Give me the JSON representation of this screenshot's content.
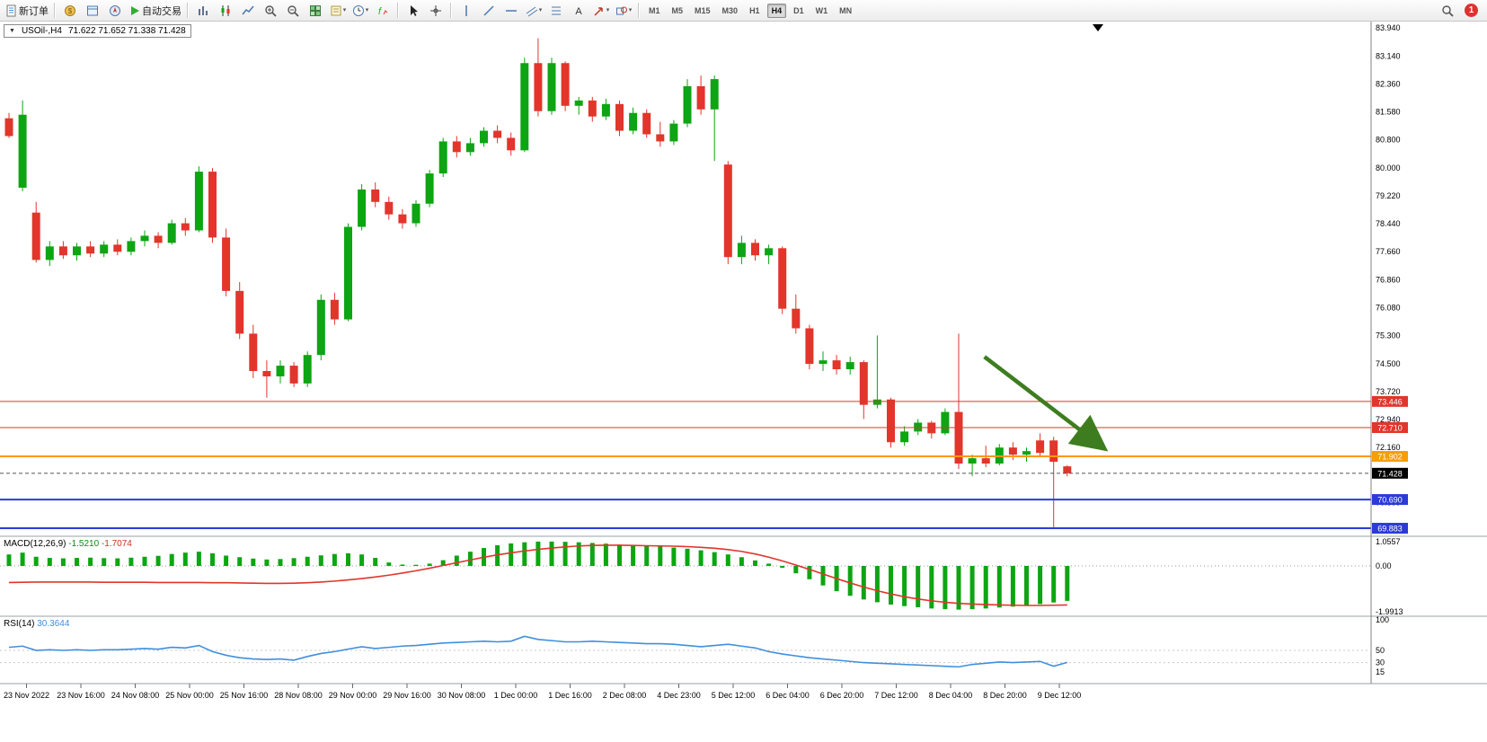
{
  "toolbar": {
    "new_order_label": "新订单",
    "auto_trading_label": "自动交易",
    "notification_count": "1",
    "timeframes": [
      "M1",
      "M5",
      "M15",
      "M30",
      "H1",
      "H4",
      "D1",
      "W1",
      "MN"
    ],
    "active_timeframe": "H4",
    "icon_groups": [
      {
        "id": "grp-windows",
        "icons": [
          "market-watch-icon",
          "data-window-icon",
          "navigator-icon"
        ]
      },
      {
        "id": "grp-chart",
        "icons": [
          "bar-chart-icon",
          "candlestick-chart-icon",
          "line-chart-icon",
          "zoom-in-icon",
          "zoom-out-icon",
          "tile-windows-icon",
          "templates-icon",
          "period-icon",
          "indicators-icon"
        ]
      },
      {
        "id": "grp-cursor",
        "icons": [
          "cursor-icon",
          "crosshair-icon"
        ]
      },
      {
        "id": "grp-draw",
        "icons": [
          "vertical-line-icon",
          "trendline-icon",
          "horizontal-line-icon",
          "equidistant-channel-icon",
          "fibonacci-icon",
          "text-label-icon",
          "arrow-tool-icon",
          "shapes-icon"
        ]
      }
    ]
  },
  "colors": {
    "bull": "#0da513",
    "bear": "#e2352b",
    "macd_histogram": "#0da513",
    "macd_signal": "#e2352b",
    "rsi_line": "#3f8fde",
    "arrow": "#3e7d1f"
  },
  "chart_data": {
    "type": "candlestick",
    "symbol": "USOil-,H4",
    "ohlc_text": "71.622 71.652 71.338 71.428",
    "open": "71.622",
    "high": "71.652",
    "low": "71.338",
    "close": "71.428",
    "price_axis": {
      "labels": [
        "83.940",
        "83.140",
        "82.360",
        "81.580",
        "80.800",
        "80.000",
        "79.220",
        "78.440",
        "77.660",
        "76.860",
        "76.080",
        "75.300",
        "74.500",
        "73.720",
        "72.940",
        "72.160",
        "71.380",
        "70.600",
        "69.820"
      ],
      "values": [
        83.94,
        83.14,
        82.36,
        81.58,
        80.8,
        80.0,
        79.22,
        78.44,
        77.66,
        76.86,
        76.08,
        75.3,
        74.5,
        73.72,
        72.94,
        72.16,
        71.38,
        70.6,
        69.82
      ]
    },
    "candles": [
      [
        81.4,
        81.55,
        80.85,
        80.9
      ],
      [
        79.45,
        81.9,
        79.35,
        81.5
      ],
      [
        78.75,
        79.05,
        77.35,
        77.42
      ],
      [
        77.42,
        77.95,
        77.25,
        77.8
      ],
      [
        77.8,
        77.95,
        77.45,
        77.55
      ],
      [
        77.55,
        77.9,
        77.4,
        77.8
      ],
      [
        77.8,
        77.95,
        77.5,
        77.6
      ],
      [
        77.6,
        77.95,
        77.5,
        77.85
      ],
      [
        77.85,
        78.0,
        77.55,
        77.65
      ],
      [
        77.65,
        78.05,
        77.55,
        77.95
      ],
      [
        77.95,
        78.25,
        77.8,
        78.1
      ],
      [
        78.1,
        78.2,
        77.75,
        77.9
      ],
      [
        77.9,
        78.55,
        77.85,
        78.45
      ],
      [
        78.45,
        78.6,
        78.1,
        78.25
      ],
      [
        78.25,
        80.05,
        78.2,
        79.9
      ],
      [
        79.9,
        80.0,
        77.9,
        78.05
      ],
      [
        78.05,
        78.3,
        76.4,
        76.55
      ],
      [
        76.55,
        76.8,
        75.2,
        75.35
      ],
      [
        75.35,
        75.6,
        74.1,
        74.3
      ],
      [
        74.3,
        74.6,
        73.55,
        74.15
      ],
      [
        74.15,
        74.6,
        73.95,
        74.45
      ],
      [
        74.45,
        74.55,
        73.85,
        73.95
      ],
      [
        73.95,
        74.85,
        73.85,
        74.75
      ],
      [
        74.75,
        76.45,
        74.6,
        76.3
      ],
      [
        76.3,
        76.5,
        75.6,
        75.75
      ],
      [
        75.75,
        78.45,
        75.7,
        78.35
      ],
      [
        78.35,
        79.55,
        78.25,
        79.4
      ],
      [
        79.4,
        79.6,
        78.9,
        79.05
      ],
      [
        79.05,
        79.2,
        78.55,
        78.7
      ],
      [
        78.7,
        78.85,
        78.3,
        78.45
      ],
      [
        78.45,
        79.1,
        78.35,
        79.0
      ],
      [
        79.0,
        79.95,
        78.9,
        79.85
      ],
      [
        79.85,
        80.85,
        79.75,
        80.75
      ],
      [
        80.75,
        80.9,
        80.3,
        80.45
      ],
      [
        80.45,
        80.85,
        80.35,
        80.7
      ],
      [
        80.7,
        81.15,
        80.6,
        81.05
      ],
      [
        81.05,
        81.2,
        80.7,
        80.85
      ],
      [
        80.85,
        81.0,
        80.35,
        80.5
      ],
      [
        80.5,
        83.1,
        80.45,
        82.95
      ],
      [
        82.95,
        83.65,
        81.45,
        81.6
      ],
      [
        81.6,
        83.1,
        81.5,
        82.95
      ],
      [
        82.95,
        83.0,
        81.6,
        81.75
      ],
      [
        81.75,
        82.0,
        81.5,
        81.9
      ],
      [
        81.9,
        82.0,
        81.3,
        81.45
      ],
      [
        81.45,
        81.95,
        81.35,
        81.8
      ],
      [
        81.8,
        81.9,
        80.9,
        81.05
      ],
      [
        81.05,
        81.7,
        80.95,
        81.55
      ],
      [
        81.55,
        81.65,
        80.85,
        80.95
      ],
      [
        80.95,
        81.3,
        80.6,
        80.75
      ],
      [
        80.75,
        81.35,
        80.65,
        81.25
      ],
      [
        81.25,
        82.5,
        81.15,
        82.3
      ],
      [
        82.3,
        82.6,
        81.5,
        81.65
      ],
      [
        81.65,
        82.6,
        80.2,
        82.5
      ],
      [
        80.1,
        80.2,
        77.3,
        77.5
      ],
      [
        77.5,
        78.1,
        77.3,
        77.9
      ],
      [
        77.9,
        78.0,
        77.4,
        77.55
      ],
      [
        77.55,
        77.85,
        77.3,
        77.75
      ],
      [
        77.75,
        77.8,
        75.9,
        76.05
      ],
      [
        76.05,
        76.45,
        75.35,
        75.5
      ],
      [
        75.5,
        75.6,
        74.35,
        74.5
      ],
      [
        74.5,
        74.85,
        74.3,
        74.6
      ],
      [
        74.6,
        74.75,
        74.2,
        74.35
      ],
      [
        74.35,
        74.7,
        74.2,
        74.55
      ],
      [
        74.55,
        74.6,
        72.95,
        73.35
      ],
      [
        73.35,
        75.3,
        73.25,
        73.5
      ],
      [
        73.5,
        73.55,
        72.15,
        72.3
      ],
      [
        72.3,
        72.75,
        72.2,
        72.6
      ],
      [
        72.6,
        72.95,
        72.5,
        72.85
      ],
      [
        72.85,
        72.9,
        72.4,
        72.55
      ],
      [
        72.55,
        73.25,
        72.5,
        73.15
      ],
      [
        73.15,
        75.35,
        71.55,
        71.7
      ],
      [
        71.7,
        71.95,
        71.35,
        71.85
      ],
      [
        71.85,
        72.2,
        71.6,
        71.7
      ],
      [
        71.7,
        72.25,
        71.65,
        72.15
      ],
      [
        72.15,
        72.3,
        71.8,
        71.95
      ],
      [
        71.95,
        72.15,
        71.75,
        72.05
      ],
      [
        72.35,
        72.55,
        71.9,
        72.0
      ],
      [
        72.35,
        72.45,
        69.9,
        71.75
      ],
      [
        71.622,
        71.652,
        71.338,
        71.428
      ]
    ],
    "hlines": [
      {
        "value": "73.446",
        "price": 73.446,
        "color": "#e2352b",
        "width": 1,
        "badge": "#e2352b"
      },
      {
        "value": "72.710",
        "price": 72.71,
        "color": "#e2352b",
        "width": 1,
        "badge": "#e2352b"
      },
      {
        "value": "71.902",
        "price": 71.902,
        "color": "#ff9800",
        "width": 2,
        "badge": "#f59f00"
      },
      {
        "value": "70.690",
        "price": 70.69,
        "color": "#2b3bd6",
        "width": 2,
        "badge": "#2b3bd6"
      },
      {
        "value": "69.883",
        "price": 69.883,
        "color": "#2b3bd6",
        "width": 2,
        "badge": "#2b3bd6"
      }
    ],
    "current_price": {
      "value": "71.428",
      "price": 71.428
    },
    "arrow": {
      "from": {
        "bar": 71.9,
        "price": 74.7
      },
      "to": {
        "bar": 80.3,
        "price": 72.25
      }
    },
    "macd": {
      "name": "MACD(12,26,9)",
      "value": "-1.5210",
      "signal_value": "-1.7074",
      "axis_labels": [
        "1.0557",
        "0.00",
        "-1.9913"
      ],
      "axis_values": [
        1.0557,
        0,
        -1.9913
      ],
      "histogram": [
        0.5,
        0.58,
        0.4,
        0.35,
        0.33,
        0.35,
        0.36,
        0.34,
        0.33,
        0.36,
        0.4,
        0.44,
        0.52,
        0.58,
        0.62,
        0.55,
        0.45,
        0.38,
        0.32,
        0.28,
        0.3,
        0.34,
        0.4,
        0.46,
        0.52,
        0.55,
        0.5,
        0.35,
        0.15,
        0.06,
        0.05,
        0.1,
        0.25,
        0.45,
        0.62,
        0.78,
        0.9,
        0.98,
        1.03,
        1.06,
        1.06,
        1.05,
        1.03,
        1.0,
        0.97,
        0.93,
        0.9,
        0.87,
        0.84,
        0.8,
        0.75,
        0.68,
        0.6,
        0.5,
        0.38,
        0.24,
        0.1,
        -0.08,
        -0.32,
        -0.58,
        -0.85,
        -1.1,
        -1.3,
        -1.46,
        -1.58,
        -1.68,
        -1.75,
        -1.8,
        -1.85,
        -1.88,
        -1.9,
        -1.88,
        -1.85,
        -1.81,
        -1.77,
        -1.72,
        -1.66,
        -1.59,
        -1.52
      ],
      "signal": [
        -0.72,
        -0.71,
        -0.7,
        -0.7,
        -0.7,
        -0.7,
        -0.7,
        -0.71,
        -0.71,
        -0.71,
        -0.71,
        -0.72,
        -0.72,
        -0.72,
        -0.72,
        -0.73,
        -0.73,
        -0.74,
        -0.75,
        -0.76,
        -0.76,
        -0.75,
        -0.73,
        -0.7,
        -0.66,
        -0.61,
        -0.55,
        -0.48,
        -0.4,
        -0.31,
        -0.21,
        -0.1,
        0.02,
        0.14,
        0.26,
        0.38,
        0.48,
        0.57,
        0.65,
        0.72,
        0.78,
        0.83,
        0.87,
        0.89,
        0.9,
        0.9,
        0.89,
        0.88,
        0.87,
        0.86,
        0.84,
        0.81,
        0.77,
        0.71,
        0.63,
        0.52,
        0.38,
        0.22,
        0.04,
        -0.15,
        -0.35,
        -0.55,
        -0.74,
        -0.92,
        -1.08,
        -1.22,
        -1.34,
        -1.44,
        -1.52,
        -1.58,
        -1.63,
        -1.66,
        -1.68,
        -1.7,
        -1.71,
        -1.72,
        -1.72,
        -1.71,
        -1.7
      ]
    },
    "rsi": {
      "name": "RSI(14)",
      "value": "30.3644",
      "axis_labels": [
        "100",
        "50",
        "30",
        "15"
      ],
      "axis_values": [
        100,
        50,
        30,
        15
      ],
      "levels": [
        50,
        30
      ],
      "values": [
        55,
        57,
        50,
        51,
        50,
        51,
        50,
        51,
        51,
        52,
        53,
        52,
        55,
        54,
        58,
        48,
        42,
        38,
        36,
        35,
        36,
        34,
        40,
        45,
        48,
        52,
        56,
        53,
        55,
        57,
        58,
        60,
        62,
        63,
        64,
        65,
        64,
        65,
        73,
        68,
        66,
        64,
        64,
        65,
        64,
        63,
        62,
        61,
        61,
        60,
        58,
        56,
        58,
        60,
        57,
        54,
        48,
        44,
        41,
        38,
        36,
        34,
        32,
        30,
        29,
        28,
        27,
        26,
        25,
        24,
        23,
        27,
        29,
        31,
        30,
        31,
        32,
        24,
        30.36
      ]
    },
    "time_axis": [
      "23 Nov 2022",
      "23 Nov 16:00",
      "24 Nov 08:00",
      "25 Nov 00:00",
      "25 Nov 16:00",
      "28 Nov 08:00",
      "29 Nov 00:00",
      "29 Nov 16:00",
      "30 Nov 08:00",
      "1 Dec 00:00",
      "1 Dec 16:00",
      "2 Dec 08:00",
      "4 Dec 23:00",
      "5 Dec 12:00",
      "6 Dec 04:00",
      "6 Dec 20:00",
      "7 Dec 12:00",
      "8 Dec 04:00",
      "8 Dec 20:00",
      "9 Dec 12:00"
    ]
  }
}
